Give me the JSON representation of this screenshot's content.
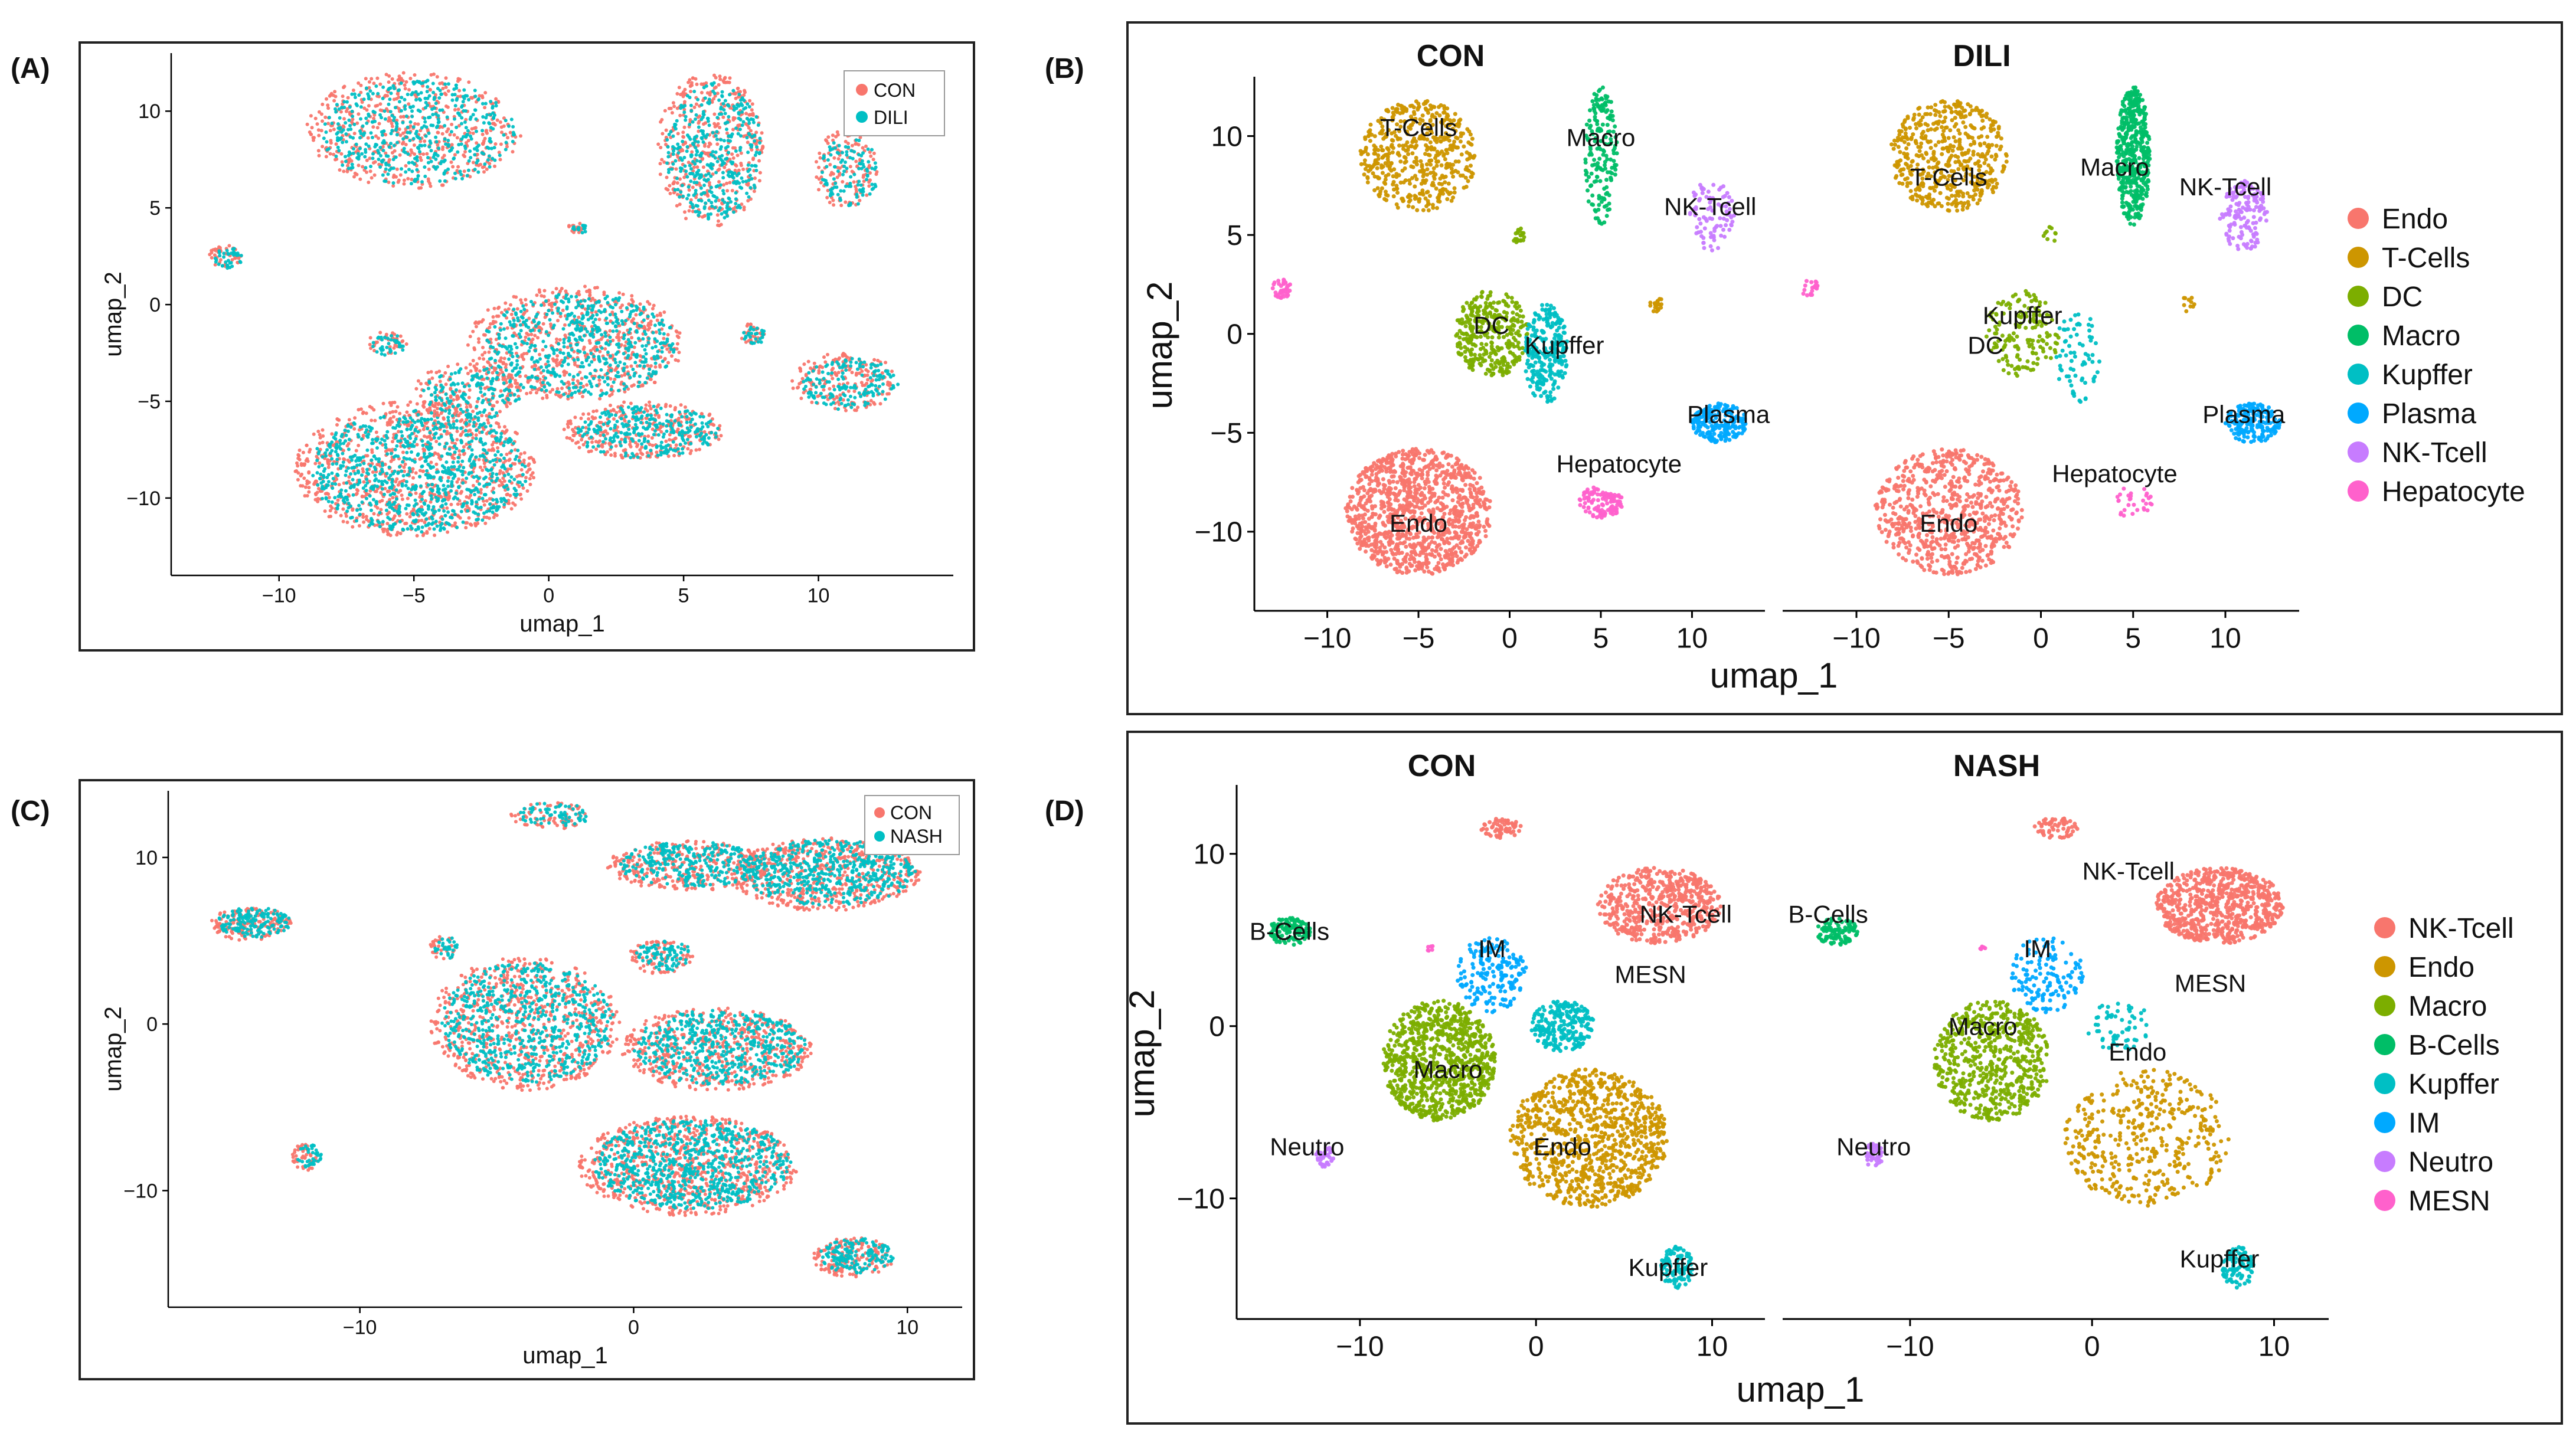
{
  "panels": {
    "A": {
      "label": "(A)"
    },
    "B": {
      "label": "(B)"
    },
    "C": {
      "label": "(C)"
    },
    "D": {
      "label": "(D)"
    }
  },
  "axes": {
    "xlabel": "umap_1",
    "ylabel": "umap_2"
  },
  "colors": {
    "CON": "#F8766D",
    "DILI": "#00BFC4",
    "NASH": "#00BFC4",
    "Endo": "#F8766D",
    "T-Cells": "#CD9600",
    "DC": "#7CAE00",
    "Macro": "#00BE67",
    "Kupffer": "#00BFC4",
    "Plasma": "#00A9FF",
    "NK-Tcell": "#C77CFF",
    "Hepatocyte": "#FF61CC",
    "D_NK-Tcell": "#F8766D",
    "D_Endo": "#CD9600",
    "D_Macro": "#7CAE00",
    "D_B-Cells": "#00BE67",
    "D_Kupffer": "#00BFC4",
    "D_IM": "#00A9FF",
    "D_Neutro": "#C77CFF",
    "D_MESN": "#FF61CC"
  },
  "chart_data": [
    {
      "panel": "A",
      "type": "scatter",
      "xlabel": "umap_1",
      "ylabel": "umap_2",
      "xticks": [
        -10,
        -5,
        0,
        5,
        10
      ],
      "yticks": [
        -10,
        -5,
        0,
        5,
        10
      ],
      "xlim": [
        -14,
        15
      ],
      "ylim": [
        -14,
        13
      ],
      "legend": [
        "CON",
        "DILI"
      ],
      "legend_position": "top-right",
      "series": [
        {
          "name": "CON"
        },
        {
          "name": "DILI"
        }
      ]
    },
    {
      "panel": "B",
      "type": "scatter",
      "xlabel": "umap_1",
      "ylabel": "umap_2",
      "facets": [
        "CON",
        "DILI"
      ],
      "xticks": [
        -10,
        -5,
        0,
        5,
        10
      ],
      "yticks": [
        -10,
        -5,
        0,
        5,
        10
      ],
      "xlim": [
        -14,
        14
      ],
      "ylim": [
        -14,
        13
      ],
      "legend": [
        "Endo",
        "T-Cells",
        "DC",
        "Macro",
        "Kupffer",
        "Plasma",
        "NK-Tcell",
        "Hepatocyte"
      ],
      "legend_position": "right",
      "cluster_labels": {
        "CON": [
          {
            "name": "T-Cells",
            "x": -5,
            "y": 10
          },
          {
            "name": "Macro",
            "x": 5,
            "y": 9.5
          },
          {
            "name": "NK-Tcell",
            "x": 11,
            "y": 6
          },
          {
            "name": "DC",
            "x": -1,
            "y": 0
          },
          {
            "name": "Kupffer",
            "x": 3,
            "y": -1
          },
          {
            "name": "Plasma",
            "x": 12,
            "y": -4.5
          },
          {
            "name": "Hepatocyte",
            "x": 6,
            "y": -7
          },
          {
            "name": "Endo",
            "x": -5,
            "y": -10
          }
        ],
        "DILI": [
          {
            "name": "T-Cells",
            "x": -5,
            "y": 7.5
          },
          {
            "name": "Macro",
            "x": 4,
            "y": 8
          },
          {
            "name": "NK-Tcell",
            "x": 10,
            "y": 7
          },
          {
            "name": "Kupffer",
            "x": -1,
            "y": 0.5
          },
          {
            "name": "DC",
            "x": -3,
            "y": -1
          },
          {
            "name": "Plasma",
            "x": 11,
            "y": -4.5
          },
          {
            "name": "Hepatocyte",
            "x": 4,
            "y": -7.5
          },
          {
            "name": "Endo",
            "x": -5,
            "y": -10
          }
        ]
      }
    },
    {
      "panel": "C",
      "type": "scatter",
      "xlabel": "umap_1",
      "ylabel": "umap_2",
      "xticks": [
        -10,
        0,
        10
      ],
      "yticks": [
        -10,
        0,
        10
      ],
      "xlim": [
        -17,
        12
      ],
      "ylim": [
        -17,
        14
      ],
      "legend": [
        "CON",
        "NASH"
      ],
      "legend_position": "top-right",
      "series": [
        {
          "name": "CON"
        },
        {
          "name": "NASH"
        }
      ]
    },
    {
      "panel": "D",
      "type": "scatter",
      "xlabel": "umap_1",
      "ylabel": "umap_2",
      "facets": [
        "CON",
        "NASH"
      ],
      "xticks": [
        -10,
        0,
        10
      ],
      "yticks": [
        -10,
        0,
        10
      ],
      "xlim": [
        -17,
        13
      ],
      "ylim": [
        -17,
        14
      ],
      "legend": [
        "NK-Tcell",
        "Endo",
        "Macro",
        "B-Cells",
        "Kupffer",
        "IM",
        "Neutro",
        "MESN"
      ],
      "legend_position": "right",
      "cluster_labels": {
        "CON": [
          {
            "name": "B-Cells",
            "x": -14,
            "y": 5
          },
          {
            "name": "IM",
            "x": -2.5,
            "y": 4
          },
          {
            "name": "NK-Tcell",
            "x": 8.5,
            "y": 6
          },
          {
            "name": "MESN",
            "x": 6.5,
            "y": 2.5
          },
          {
            "name": "Macro",
            "x": -5,
            "y": -3
          },
          {
            "name": "Neutro",
            "x": -13,
            "y": -7.5
          },
          {
            "name": "Endo",
            "x": 1.5,
            "y": -7.5
          },
          {
            "name": "Kupffer",
            "x": 7.5,
            "y": -14.5
          }
        ],
        "NASH": [
          {
            "name": "B-Cells",
            "x": -14.5,
            "y": 6
          },
          {
            "name": "NK-Tcell",
            "x": 2,
            "y": 8.5
          },
          {
            "name": "IM",
            "x": -3,
            "y": 4
          },
          {
            "name": "MESN",
            "x": 6.5,
            "y": 2
          },
          {
            "name": "Macro",
            "x": -6,
            "y": -0.5
          },
          {
            "name": "Endo",
            "x": 2.5,
            "y": -2
          },
          {
            "name": "Neutro",
            "x": -12,
            "y": -7.5
          },
          {
            "name": "Kupffer",
            "x": 7,
            "y": -14
          }
        ]
      }
    }
  ]
}
